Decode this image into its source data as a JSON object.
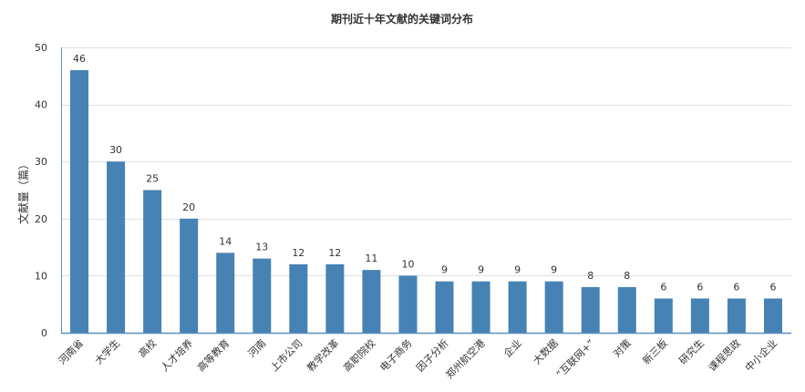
{
  "chart_data": {
    "type": "bar",
    "title": "期刊近十年文献的关键词分布",
    "xlabel": "",
    "ylabel": "文献量（篇）",
    "ylim": [
      0,
      50
    ],
    "yticks": [
      0,
      10,
      20,
      30,
      40,
      50
    ],
    "grid": true,
    "bar_color": "#4682b4",
    "categories": [
      "河南省",
      "大学生",
      "高校",
      "人才培养",
      "高等教育",
      "河南",
      "上市公司",
      "教学改革",
      "高职院校",
      "电子商务",
      "因子分析",
      "郑州航空港",
      "企业",
      "大数据",
      "“互联网+”",
      "对策",
      "新三板",
      "研究生",
      "课程思政",
      "中小企业"
    ],
    "values": [
      46,
      30,
      25,
      20,
      14,
      13,
      12,
      12,
      11,
      10,
      9,
      9,
      9,
      9,
      8,
      8,
      6,
      6,
      6,
      6
    ]
  }
}
